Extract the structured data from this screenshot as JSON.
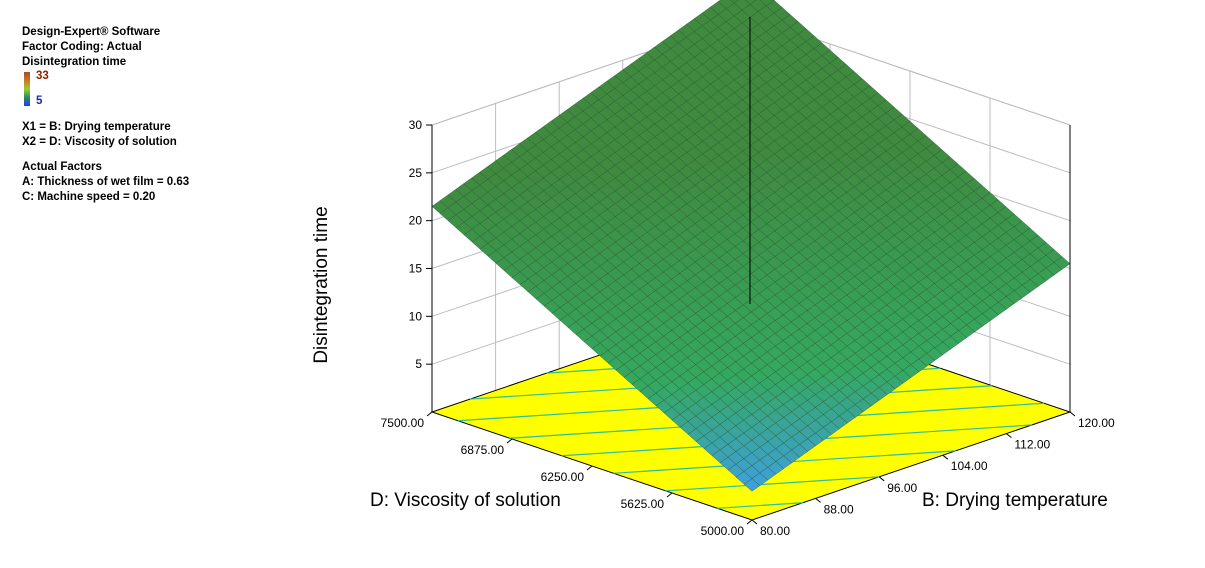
{
  "info": {
    "software": "Design-Expert® Software",
    "factor_coding": "Factor Coding: Actual",
    "response": "Disintegration time",
    "legend_max": "33",
    "legend_min": "5",
    "x1": "X1 = B: Drying temperature",
    "x2": "X2 = D: Viscosity of solution",
    "actual_factors_title": "Actual Factors",
    "factor_a": "A: Thickness of wet film = 0.63",
    "factor_c": "C: Machine speed = 0.20"
  },
  "colors": {
    "surface_high": "#3f8a3f",
    "surface_mid": "#35a860",
    "surface_low": "#3fa0e0",
    "floor": "#ffff00",
    "contour": "#2bbf9a"
  },
  "chart_data": {
    "type": "surface",
    "zlabel": "Disintegration time",
    "xlabel": "B: Drying temperature",
    "ylabel": "D: Viscosity of solution",
    "x_ticks": [
      "80.00",
      "88.00",
      "96.00",
      "104.00",
      "112.00",
      "120.00"
    ],
    "y_ticks": [
      "5000.00",
      "5625.00",
      "6250.00",
      "6875.00",
      "7500.00"
    ],
    "z_ticks": [
      "5",
      "10",
      "15",
      "20",
      "25",
      "30"
    ],
    "x_range": [
      80,
      120
    ],
    "y_range": [
      5000,
      7500
    ],
    "z_range": [
      0,
      30
    ],
    "surface_corners": [
      {
        "x": 80,
        "y": 5000,
        "z": 3
      },
      {
        "x": 120,
        "y": 5000,
        "z": 15.5
      },
      {
        "x": 80,
        "y": 7500,
        "z": 21.5
      },
      {
        "x": 120,
        "y": 7500,
        "z": 34
      }
    ],
    "grid": true
  }
}
